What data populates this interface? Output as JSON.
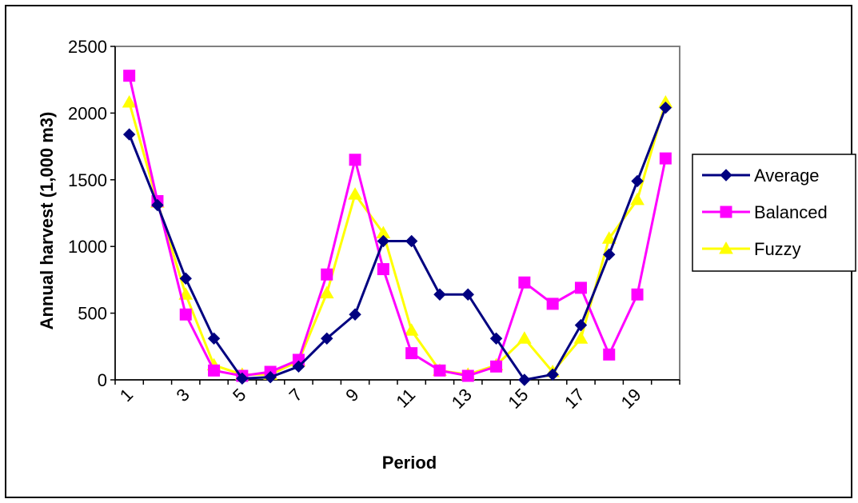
{
  "chart_data": {
    "type": "line",
    "title": "",
    "xlabel": "Period",
    "ylabel": "Annual harvest (1,000 m3)",
    "ylim": [
      0,
      2500
    ],
    "yticks": [
      0,
      500,
      1000,
      1500,
      2000,
      2500
    ],
    "x": [
      1,
      2,
      3,
      4,
      5,
      6,
      7,
      8,
      9,
      10,
      11,
      12,
      13,
      14,
      15,
      16,
      17,
      18,
      19,
      20
    ],
    "xtick_labels": [
      "1",
      "3",
      "5",
      "7",
      "9",
      "11",
      "13",
      "15",
      "17",
      "19"
    ],
    "grid": false,
    "legend_position": "right",
    "series": [
      {
        "name": "Average",
        "color": "#000080",
        "marker": "diamond",
        "values": [
          1840,
          1310,
          760,
          310,
          10,
          20,
          100,
          310,
          490,
          1040,
          1040,
          640,
          640,
          310,
          0,
          40,
          410,
          940,
          1490,
          2040
        ]
      },
      {
        "name": "Balanced",
        "color": "#ff00ff",
        "marker": "square",
        "values": [
          2280,
          1340,
          490,
          70,
          30,
          60,
          150,
          790,
          1650,
          830,
          200,
          70,
          30,
          100,
          730,
          570,
          690,
          190,
          640,
          1660
        ]
      },
      {
        "name": "Fuzzy",
        "color": "#ffff00",
        "marker": "triangle",
        "values": [
          2080,
          1330,
          640,
          110,
          40,
          40,
          140,
          650,
          1390,
          1100,
          370,
          70,
          40,
          110,
          310,
          60,
          310,
          1060,
          1350,
          2080
        ]
      }
    ]
  }
}
